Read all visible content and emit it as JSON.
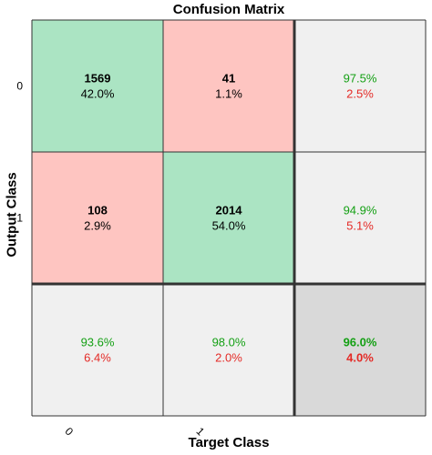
{
  "chart_data": {
    "type": "heatmap",
    "title": "Confusion Matrix",
    "xlabel": "Target Class",
    "ylabel": "Output Class",
    "x_tick_labels": [
      "0",
      "1"
    ],
    "y_tick_labels": [
      "0",
      "1"
    ],
    "cells": [
      [
        {
          "count": "1569",
          "percent": "42.0%"
        },
        {
          "count": "41",
          "percent": "1.1%"
        }
      ],
      [
        {
          "count": "108",
          "percent": "2.9%"
        },
        {
          "count": "2014",
          "percent": "54.0%"
        }
      ]
    ],
    "row_summary": [
      {
        "correct": "97.5%",
        "incorrect": "2.5%"
      },
      {
        "correct": "94.9%",
        "incorrect": "5.1%"
      }
    ],
    "column_summary": [
      {
        "correct": "93.6%",
        "incorrect": "6.4%"
      },
      {
        "correct": "98.0%",
        "incorrect": "2.0%"
      }
    ],
    "overall": {
      "correct": "96.0%",
      "incorrect": "4.0%"
    },
    "colors": {
      "correct_cell": "#abe4c3",
      "incorrect_cell": "#fec5c1",
      "summary_cell": "#f0f0f0",
      "overall_cell": "#d9d9d9",
      "correct_text": "#14a014",
      "incorrect_text": "#e42a26"
    }
  }
}
